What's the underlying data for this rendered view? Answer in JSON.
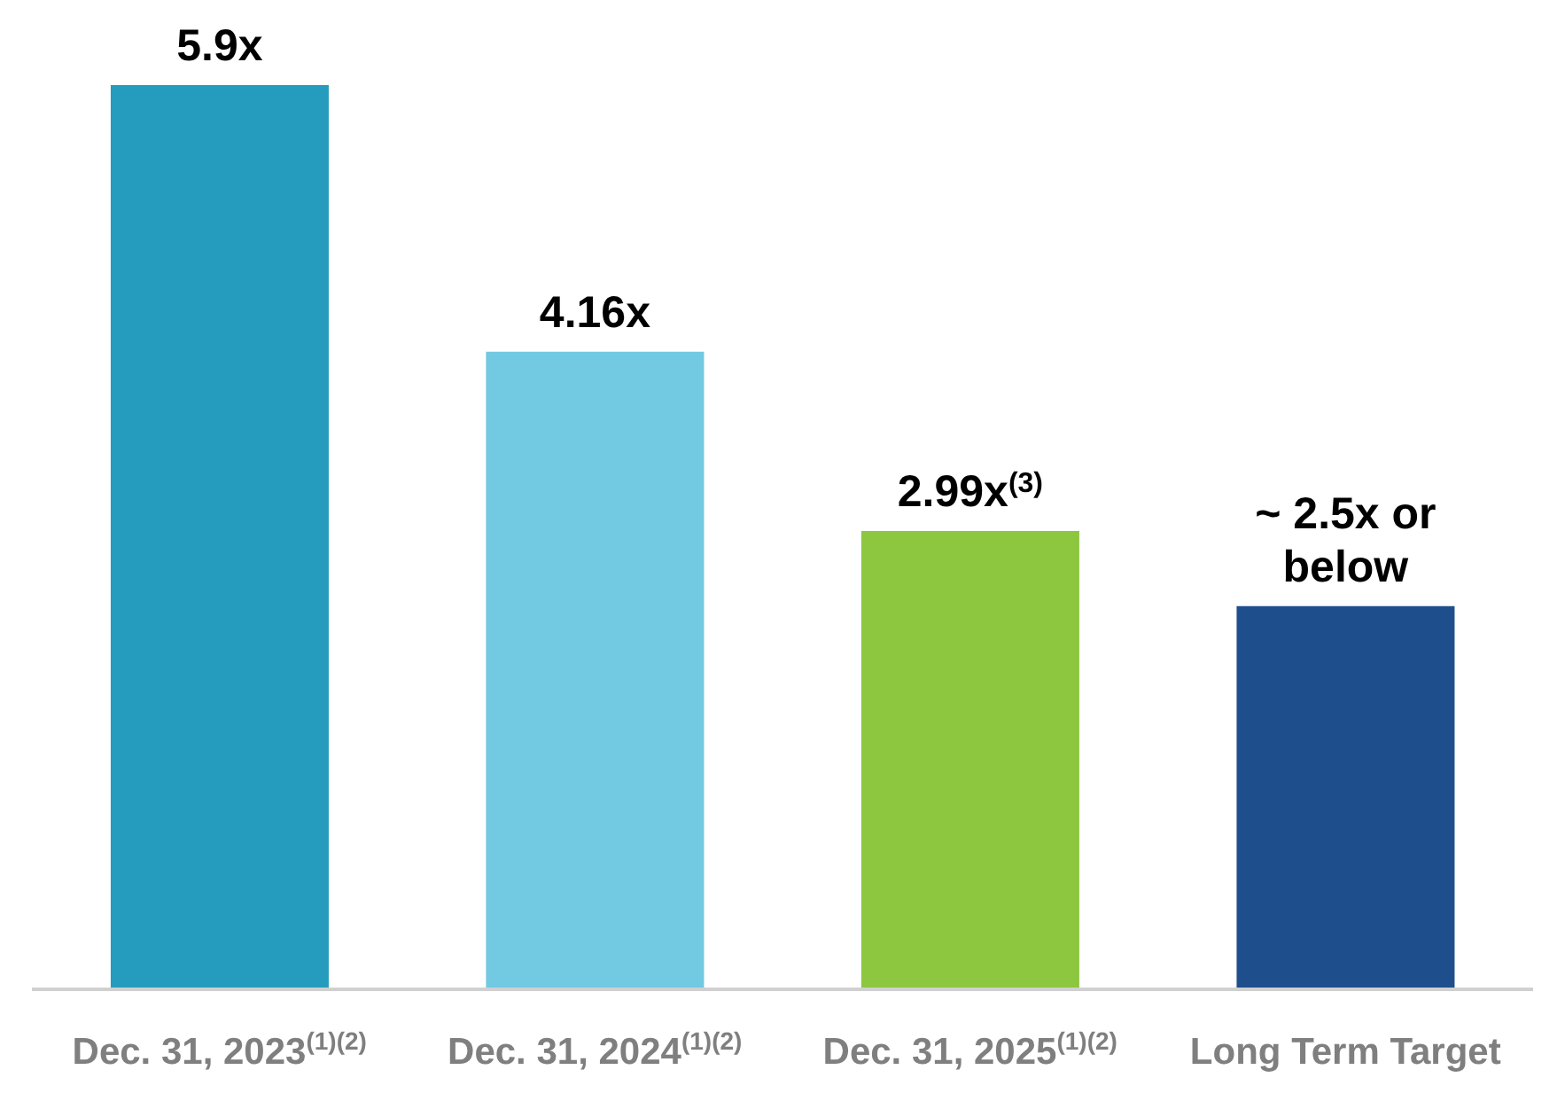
{
  "chart_data": {
    "type": "bar",
    "categories": [
      "Dec. 31, 2023$^{(1)(2)}$",
      "Dec. 31, 2024$^{(1)(2)}$",
      "Dec. 31, 2025$^{(1)(2)}$",
      "Long Term Target"
    ],
    "values": [
      5.9,
      4.16,
      2.99,
      2.5
    ],
    "colors": [
      "#259bbd",
      "#71c9e2",
      "#8dc63f",
      "#1f4e8c"
    ],
    "value_labels": [
      "5.9x",
      "4.16x",
      "2.99x$^{(3)}$",
      "~ 2.5x or below"
    ]
  }
}
